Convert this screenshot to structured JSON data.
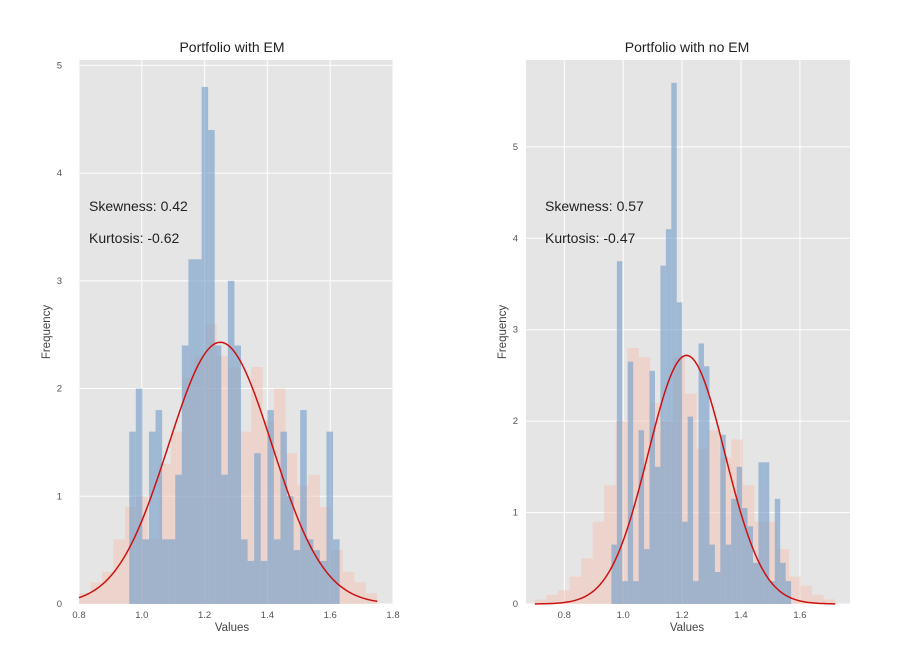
{
  "chart_data": [
    {
      "type": "histogram",
      "title": "Portfolio with EM",
      "xlabel": "Values",
      "ylabel": "Frequency",
      "xlim": [
        0.8,
        1.8
      ],
      "ylim": [
        0,
        5.05
      ],
      "xticks": [
        "0.8",
        "1.0",
        "1.2",
        "1.4",
        "1.6",
        "1.8"
      ],
      "yticks": [
        "0",
        "1",
        "2",
        "3",
        "4",
        "5"
      ],
      "annotations": [
        "Skewness: 0.42",
        "Kurtosis: -0.62"
      ],
      "grid": true,
      "colors": {
        "hist": "#6f9bc9",
        "shadow": "#f2c6b8",
        "curve": "#cc1111",
        "background": "#e5e5e5",
        "grid": "#ffffff"
      },
      "hist_range": [
        0.96,
        1.63
      ],
      "hist_values": [
        1.6,
        2.0,
        0.6,
        1.6,
        1.8,
        0.6,
        0.6,
        1.2,
        2.4,
        3.2,
        3.2,
        4.8,
        4.4,
        2.4,
        1.2,
        3.0,
        2.4,
        0.6,
        0.4,
        1.4,
        0.4,
        1.8,
        0.6,
        1.6,
        1.0,
        0.5,
        1.8,
        0.6,
        0.5,
        0.4,
        1.6,
        0.6
      ],
      "shadow_range": [
        0.8,
        1.75
      ],
      "shadow_values": [
        0.1,
        0.2,
        0.3,
        0.6,
        0.9,
        1.0,
        0.6,
        1.3,
        1.6,
        2.1,
        2.3,
        2.6,
        2.3,
        2.2,
        1.6,
        2.2,
        1.7,
        2.0,
        1.4,
        1.1,
        1.2,
        0.9,
        0.5,
        0.3,
        0.2,
        0.1
      ],
      "curve": {
        "mu": 1.25,
        "sigma": 0.165,
        "peak": 2.43,
        "x_range": [
          0.8,
          1.75
        ]
      }
    },
    {
      "type": "histogram",
      "title": "Portfolio with no EM",
      "xlabel": "Values",
      "ylabel": "Frequency",
      "xlim": [
        0.67,
        1.77
      ],
      "ylim": [
        0,
        5.95
      ],
      "xticks": [
        "0.8",
        "1.0",
        "1.2",
        "1.4",
        "1.6"
      ],
      "yticks": [
        "0",
        "1",
        "2",
        "3",
        "4",
        "5"
      ],
      "annotations": [
        "Skewness: 0.57",
        "Kurtosis: -0.47"
      ],
      "grid": true,
      "colors": {
        "hist": "#6f9bc9",
        "shadow": "#f2c6b8",
        "curve": "#cc1111",
        "background": "#e5e5e5",
        "grid": "#ffffff"
      },
      "hist_range": [
        0.96,
        1.57
      ],
      "hist_values": [
        0.65,
        3.75,
        0.25,
        2.65,
        0.25,
        1.9,
        0.6,
        2.55,
        1.5,
        3.7,
        4.1,
        5.7,
        3.3,
        0.9,
        2.05,
        0.25,
        2.85,
        2.6,
        0.65,
        0.35,
        1.85,
        0.65,
        1.15,
        1.5,
        1.05,
        0.85,
        0.45,
        1.55,
        1.55,
        0.25,
        1.15,
        0.45,
        0.25
      ],
      "shadow_range": [
        0.7,
        1.72
      ],
      "shadow_values": [
        0.05,
        0.1,
        0.15,
        0.3,
        0.5,
        0.9,
        1.3,
        2.0,
        2.8,
        2.7,
        2.2,
        2.0,
        2.7,
        2.3,
        1.7,
        1.9,
        1.6,
        1.8,
        1.3,
        0.9,
        0.9,
        0.6,
        0.3,
        0.2,
        0.1,
        0.05
      ],
      "curve": {
        "mu": 1.215,
        "sigma": 0.13,
        "peak": 2.72,
        "x_range": [
          0.7,
          1.72
        ]
      }
    }
  ]
}
